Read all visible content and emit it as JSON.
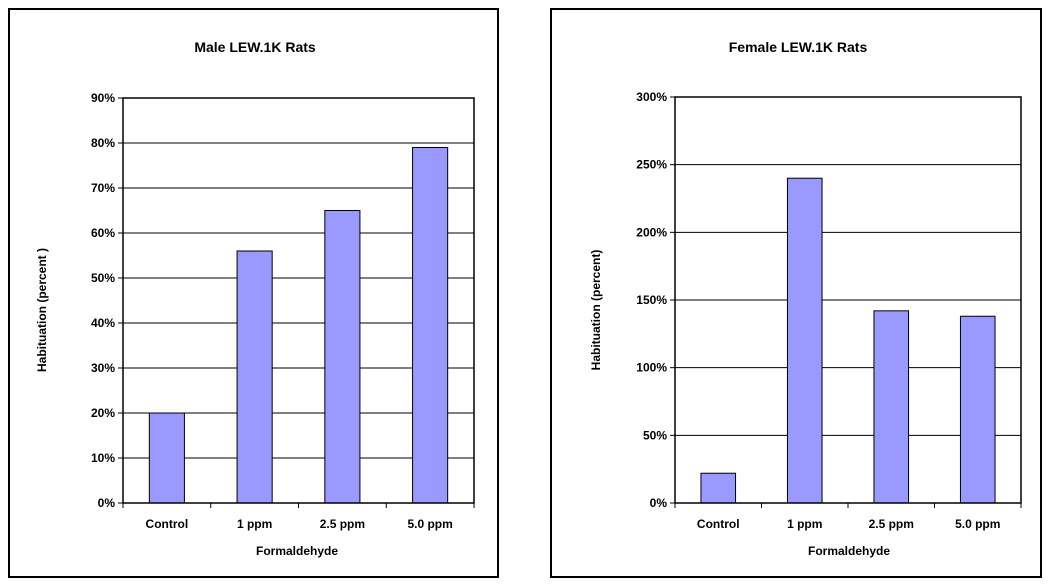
{
  "chart_data": [
    {
      "type": "bar",
      "title": "Male LEW.1K Rats",
      "xlabel": "Formaldehyde",
      "ylabel": "Habituation (percent )",
      "categories": [
        "Control",
        "1 ppm",
        "2.5 ppm",
        "5.0 ppm"
      ],
      "values": [
        20,
        56,
        65,
        79
      ],
      "ylim": [
        0,
        90
      ],
      "ytick_step": 10,
      "ytick_suffix": "%",
      "grid": true,
      "legend": "none",
      "bar_color": "#9999ff"
    },
    {
      "type": "bar",
      "title": "Female LEW.1K Rats",
      "xlabel": "Formaldehyde",
      "ylabel": "Habituation (percent)",
      "categories": [
        "Control",
        "1 ppm",
        "2.5 ppm",
        "5.0 ppm"
      ],
      "values": [
        22,
        240,
        142,
        138
      ],
      "ylim": [
        0,
        300
      ],
      "ytick_step": 50,
      "ytick_suffix": "%",
      "grid": true,
      "legend": "none",
      "bar_color": "#9999ff"
    }
  ]
}
